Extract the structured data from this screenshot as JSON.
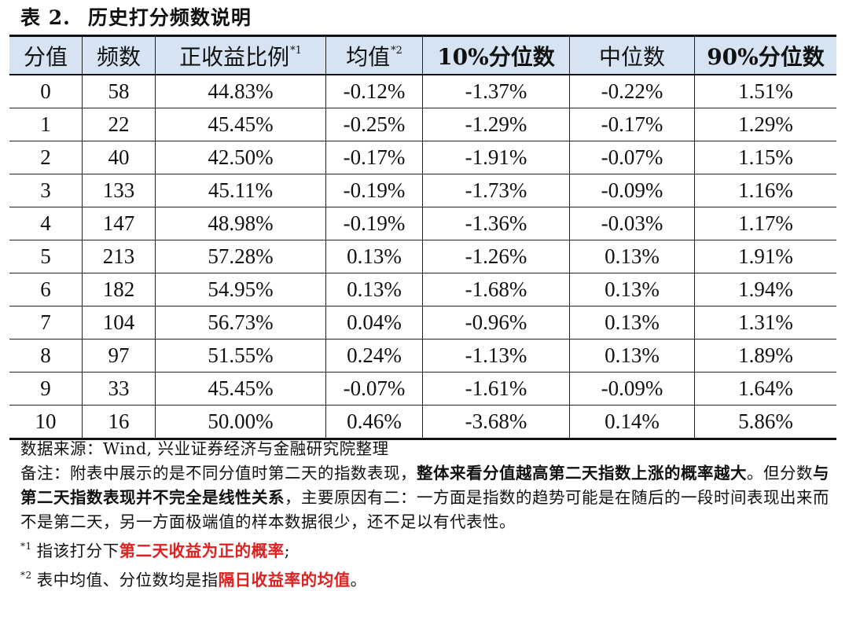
{
  "title": {
    "label": "表 2.",
    "text": "历史打分频数说明"
  },
  "table": {
    "headers": [
      {
        "text": "分值",
        "sup": "",
        "bold": false
      },
      {
        "text": "频数",
        "sup": "",
        "bold": false
      },
      {
        "text": "正收益比例",
        "sup": "*1",
        "bold": false
      },
      {
        "text": "均值",
        "sup": "*2",
        "bold": false
      },
      {
        "text": "10%分位数",
        "sup": "",
        "bold": true
      },
      {
        "text": "中位数",
        "sup": "",
        "bold": false
      },
      {
        "text": "90%分位数",
        "sup": "",
        "bold": true
      }
    ],
    "rows": [
      [
        "0",
        "58",
        "44.83%",
        "-0.12%",
        "-1.37%",
        "-0.22%",
        "1.51%"
      ],
      [
        "1",
        "22",
        "45.45%",
        "-0.25%",
        "-1.29%",
        "-0.17%",
        "1.29%"
      ],
      [
        "2",
        "40",
        "42.50%",
        "-0.17%",
        "-1.91%",
        "-0.07%",
        "1.15%"
      ],
      [
        "3",
        "133",
        "45.11%",
        "-0.19%",
        "-1.73%",
        "-0.09%",
        "1.16%"
      ],
      [
        "4",
        "147",
        "48.98%",
        "-0.19%",
        "-1.36%",
        "-0.03%",
        "1.17%"
      ],
      [
        "5",
        "213",
        "57.28%",
        "0.13%",
        "-1.26%",
        "0.13%",
        "1.91%"
      ],
      [
        "6",
        "182",
        "54.95%",
        "0.13%",
        "-1.68%",
        "0.13%",
        "1.94%"
      ],
      [
        "7",
        "104",
        "56.73%",
        "0.04%",
        "-0.96%",
        "0.13%",
        "1.31%"
      ],
      [
        "8",
        "97",
        "51.55%",
        "0.24%",
        "-1.13%",
        "0.13%",
        "1.89%"
      ],
      [
        "9",
        "33",
        "45.45%",
        "-0.07%",
        "-1.61%",
        "-0.09%",
        "1.64%"
      ],
      [
        "10",
        "16",
        "50.00%",
        "0.46%",
        "-3.68%",
        "0.14%",
        "5.86%"
      ]
    ]
  },
  "notes": {
    "source": "数据来源：Wind, 兴业证券经济与金融研究院整理",
    "remark_prefix": "备注：附表中展示的是不同分值时第二天的指数表现，",
    "remark_bold1": "整体来看分值越高第二天指数上涨的概率越大",
    "remark_mid": "。但分数",
    "remark_bold2": "与第二天指数表现并不完全是线性关系",
    "remark_rest": "，主要原因有二：一方面是指数的趋势可能是在随后的一段时间表现出来而不是第二天，另一方面极端值的样本数据很少，还不足以有代表性。",
    "fn1_mark": "*1",
    "fn1_text": "指该打分下",
    "fn1_red": "第二天收益为正的概率",
    "fn1_end": ";",
    "fn2_mark": "*2",
    "fn2_text": "表中均值、分位数均是指",
    "fn2_red": "隔日收益率的均值",
    "fn2_end": "。",
    "colors": {
      "highlight": "#e02020",
      "header_bg": "#d6e3f3"
    }
  }
}
